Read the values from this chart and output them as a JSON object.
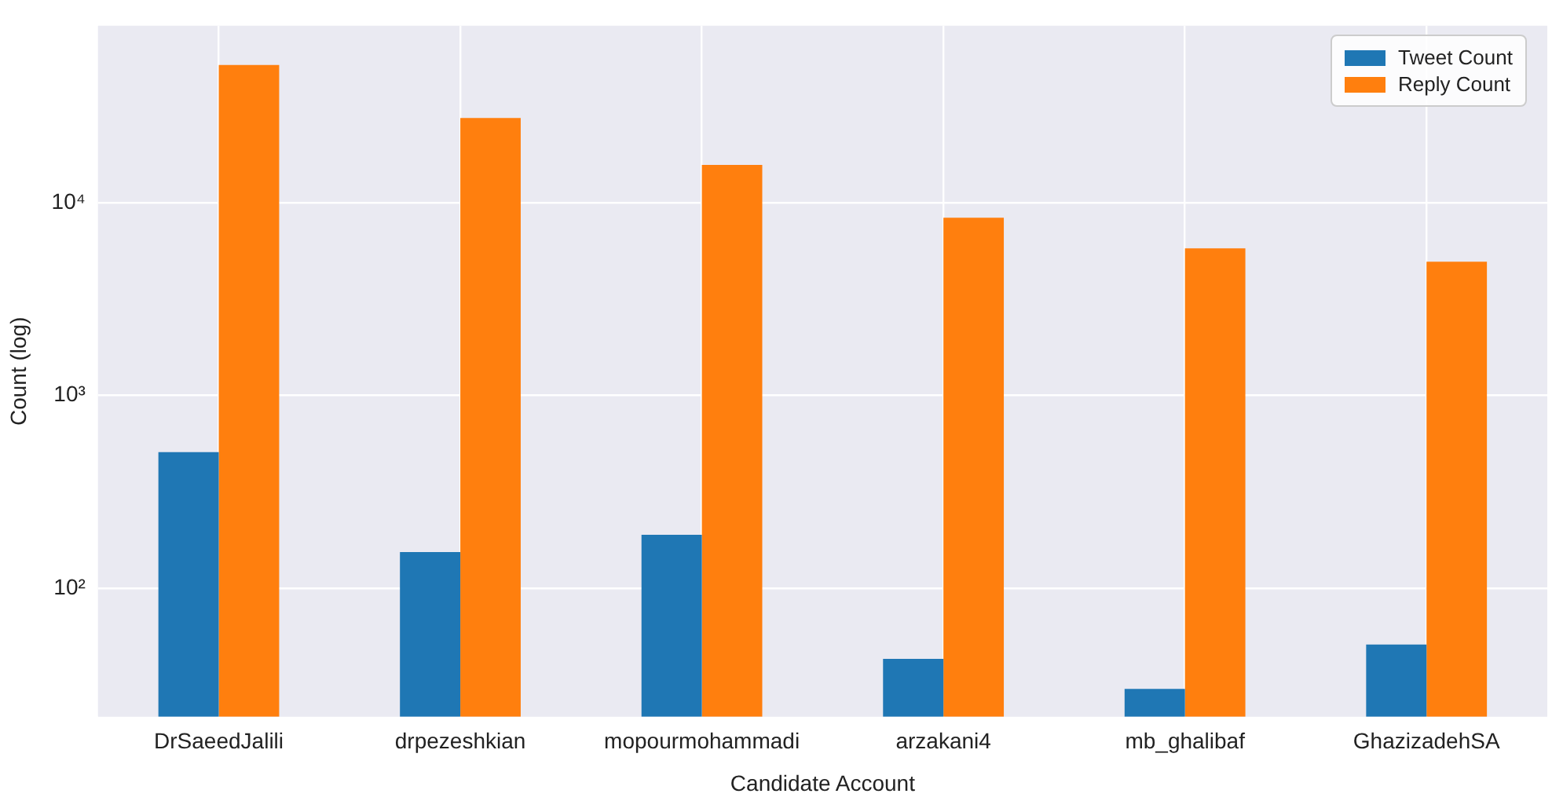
{
  "chart_data": {
    "type": "bar",
    "xlabel": "Candidate Account",
    "ylabel": "Count (log)",
    "categories": [
      "DrSaeedJalili",
      "drpezeshkian",
      "mopourmohammadi",
      "arzakani4",
      "mb_ghalibaf",
      "GhazizadehSA"
    ],
    "series": [
      {
        "name": "Tweet Count",
        "color": "#1f77b4",
        "values": [
          508,
          154,
          189,
          43,
          30,
          51
        ]
      },
      {
        "name": "Reply Count",
        "color": "#ff7f0e",
        "values": [
          51800,
          27500,
          15700,
          8350,
          5800,
          4940
        ]
      }
    ],
    "log": "y",
    "ylim": [
      21.5,
      82800
    ],
    "yticks": [
      {
        "value": 100,
        "label": "10²"
      },
      {
        "value": 1000,
        "label": "10³"
      },
      {
        "value": 10000,
        "label": "10⁴"
      }
    ],
    "grid": true,
    "legend": "top right"
  }
}
